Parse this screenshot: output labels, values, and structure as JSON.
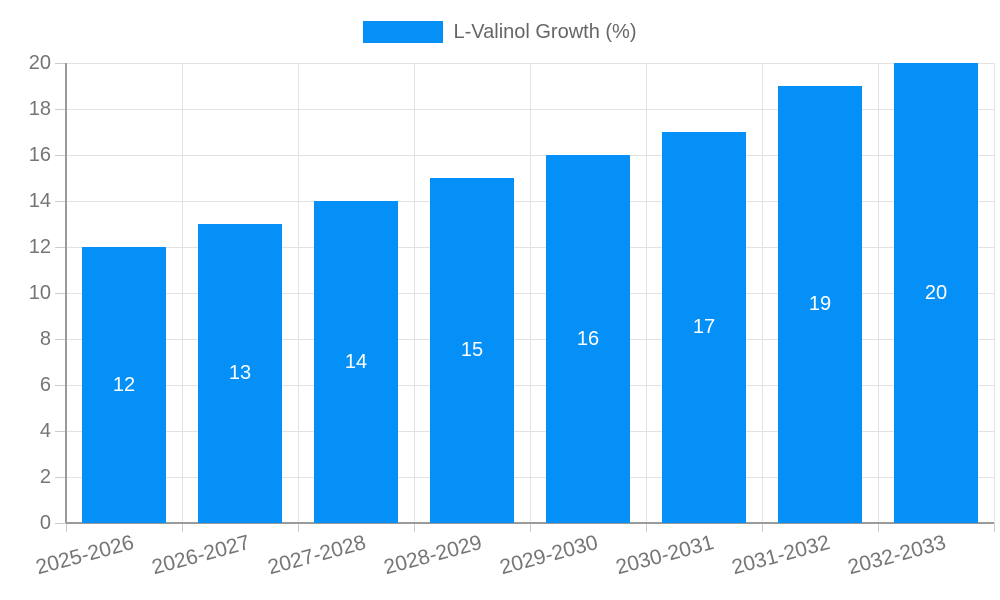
{
  "chart_data": {
    "type": "bar",
    "title": "",
    "xlabel": "",
    "ylabel": "",
    "legend": {
      "label": "L-Valinol Growth (%)",
      "position": "top"
    },
    "categories": [
      "2025-2026",
      "2026-2027",
      "2027-2028",
      "2028-2029",
      "2029-2030",
      "2030-2031",
      "2031-2032",
      "2032-2033"
    ],
    "values": [
      12,
      13,
      14,
      15,
      16,
      17,
      19,
      20
    ],
    "bar_labels": [
      "12",
      "13",
      "14",
      "15",
      "16",
      "17",
      "19",
      "20"
    ],
    "ylim": [
      0,
      20
    ],
    "ytick_step": 2,
    "ytick_labels": [
      "0",
      "2",
      "4",
      "6",
      "8",
      "10",
      "12",
      "14",
      "16",
      "18",
      "20"
    ],
    "grid": true,
    "colors": {
      "bar": "#0590f8",
      "bar_label": "#ffffff",
      "grid": "#e2e2e2",
      "axis": "#9a9a9a",
      "tick": "#cccccc",
      "tick_label": "#757575",
      "legend_text": "#666666",
      "background": "#ffffff"
    }
  }
}
